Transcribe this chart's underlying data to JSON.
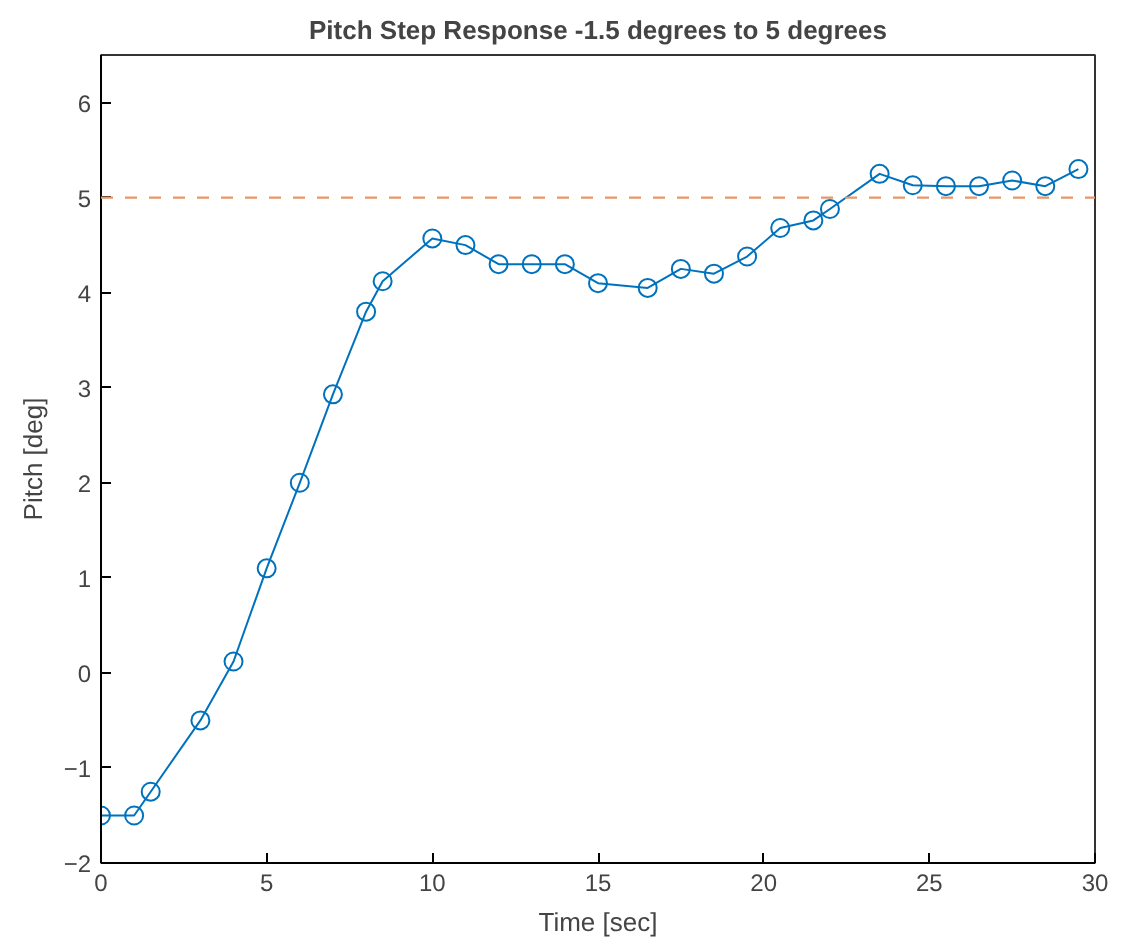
{
  "chart_data": {
    "type": "line",
    "title": "Pitch Step Response -1.5 degrees to 5 degrees",
    "xlabel": "Time [sec]",
    "ylabel": "Pitch [deg]",
    "x": [
      0,
      1,
      1.5,
      3,
      4,
      5,
      6,
      7,
      8,
      8.5,
      10,
      11,
      12,
      13,
      14,
      15,
      16.5,
      17.5,
      18.5,
      19.5,
      20.5,
      21.5,
      22,
      23.5,
      24.5,
      25.5,
      26.5,
      27.5,
      28.5,
      29.5
    ],
    "series": [
      {
        "color": "#0072bd",
        "values": [
          -1.5,
          -1.5,
          -1.25,
          -0.5,
          0.12,
          1.1,
          2.0,
          2.93,
          3.8,
          4.12,
          4.57,
          4.5,
          4.3,
          4.3,
          4.3,
          4.1,
          4.05,
          4.25,
          4.2,
          4.38,
          4.68,
          4.76,
          4.88,
          5.25,
          5.13,
          5.12,
          5.12,
          5.18,
          5.12,
          5.3
        ]
      }
    ],
    "xlim": [
      0,
      30
    ],
    "xticks": [
      0,
      5,
      10,
      15,
      20,
      25,
      30
    ],
    "ylim": [
      -2,
      6.5
    ],
    "yticks": [
      -2,
      -1,
      0,
      1,
      2,
      3,
      4,
      5,
      6
    ],
    "ref_lines": [
      {
        "axis": "y",
        "value": 5,
        "color": "#e8966a",
        "line_style": "dashed"
      }
    ],
    "marker": "circle",
    "line_style": "solid",
    "grid": false
  }
}
